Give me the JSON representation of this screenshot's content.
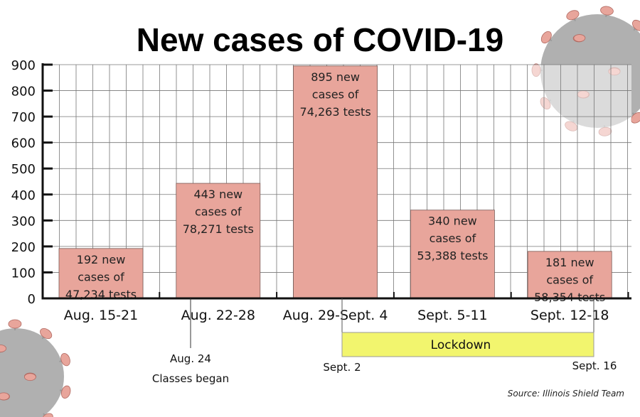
{
  "chart_data": {
    "type": "bar",
    "title": "New cases of COVID-19",
    "categories": [
      "Aug. 15-21",
      "Aug. 22-28",
      "Aug. 29-Sept. 4",
      "Sept. 5-11",
      "Sept. 12-18"
    ],
    "values": [
      192,
      443,
      895,
      340,
      181
    ],
    "tests": [
      "47,234",
      "78,271",
      "74,263",
      "53,388",
      "58,354"
    ],
    "bar_labels": [
      [
        "192 new",
        "cases of",
        "47,234 tests"
      ],
      [
        "443 new",
        "cases of",
        "78,271 tests"
      ],
      [
        "895 new",
        "cases of",
        "74,263 tests"
      ],
      [
        "340 new",
        "cases of",
        "53,388 tests"
      ],
      [
        "181 new",
        "cases of",
        "58,354 tests"
      ]
    ],
    "ylim": [
      0,
      900
    ],
    "yticks": [
      "0",
      "100",
      "200",
      "300",
      "400",
      "500",
      "600",
      "700",
      "800",
      "900"
    ],
    "grid": true,
    "bar_color": "#e8a59b",
    "annotations": {
      "classes": {
        "line1": "Aug. 24",
        "line2": "Classes began"
      },
      "lockdown": {
        "label": "Lockdown",
        "start": "Sept. 2",
        "end": "Sept. 16",
        "color": "#f2f56e"
      }
    },
    "source": "Source: Illinois Shield Team"
  },
  "decorations": {
    "virus_icon_color": "#b0b0b0",
    "spike_color": "#e8a59b"
  }
}
